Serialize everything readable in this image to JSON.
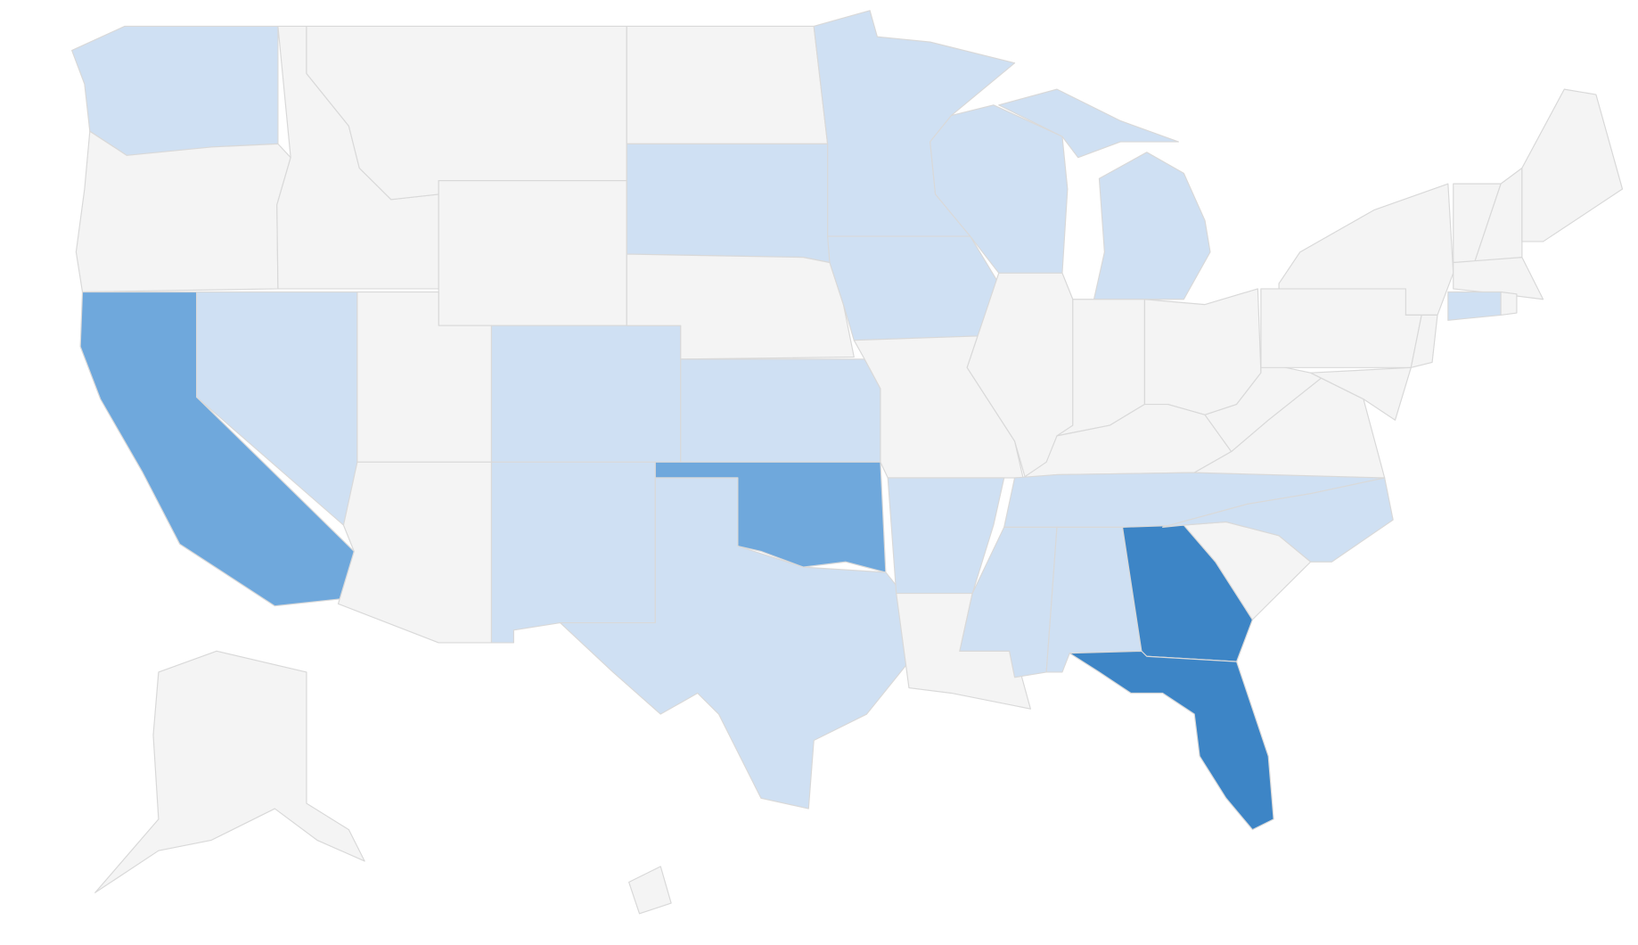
{
  "map": {
    "type": "choropleth",
    "border_color": "#d9d9d9",
    "regions": [
      {
        "color": "#cfe0f3"
      },
      {
        "color": "#f4f4f4"
      },
      {
        "color": "#6fa8dc"
      },
      {
        "color": "#cfe0f3"
      },
      {
        "color": "#f4f4f4"
      },
      {
        "color": "#f4f4f4"
      },
      {
        "color": "#f4f4f4"
      },
      {
        "color": "#f4f4f4"
      },
      {
        "color": "#f4f4f4"
      },
      {
        "color": "#cfe0f3"
      },
      {
        "color": "#cfe0f3"
      },
      {
        "color": "#f4f4f4"
      },
      {
        "color": "#cfe0f3"
      },
      {
        "color": "#f4f4f4"
      },
      {
        "color": "#cfe0f3"
      },
      {
        "color": "#6fa8dc"
      },
      {
        "color": "#cfe0f3"
      },
      {
        "color": "#cfe0f3"
      },
      {
        "color": "#cfe0f3"
      },
      {
        "color": "#f4f4f4"
      },
      {
        "color": "#cfe0f3"
      },
      {
        "color": "#f4f4f4"
      },
      {
        "color": "#cfe0f3"
      },
      {
        "color": "#cfe0f3"
      },
      {
        "color": "#cfe0f3"
      },
      {
        "color": "#f4f4f4"
      },
      {
        "color": "#f4f4f4"
      },
      {
        "color": "#f4f4f4"
      },
      {
        "color": "#f4f4f4"
      },
      {
        "color": "#cfe0f3"
      },
      {
        "color": "#cfe0f3"
      },
      {
        "color": "#cfe0f3"
      },
      {
        "color": "#3d85c6"
      },
      {
        "color": "#3d85c6"
      },
      {
        "color": "#f4f4f4"
      },
      {
        "color": "#cfe0f3"
      },
      {
        "color": "#f4f4f4"
      },
      {
        "color": "#f4f4f4"
      },
      {
        "color": "#f4f4f4"
      },
      {
        "color": "#f4f4f4"
      },
      {
        "color": "#f4f4f4"
      },
      {
        "color": "#f4f4f4"
      },
      {
        "color": "#f4f4f4"
      },
      {
        "color": "#f4f4f4"
      },
      {
        "color": "#f4f4f4"
      },
      {
        "color": "#f4f4f4"
      },
      {
        "color": "#cfe0f3"
      },
      {
        "color": "#f4f4f4"
      },
      {
        "color": "#f4f4f4"
      },
      {
        "color": "#f4f4f4"
      }
    ]
  }
}
